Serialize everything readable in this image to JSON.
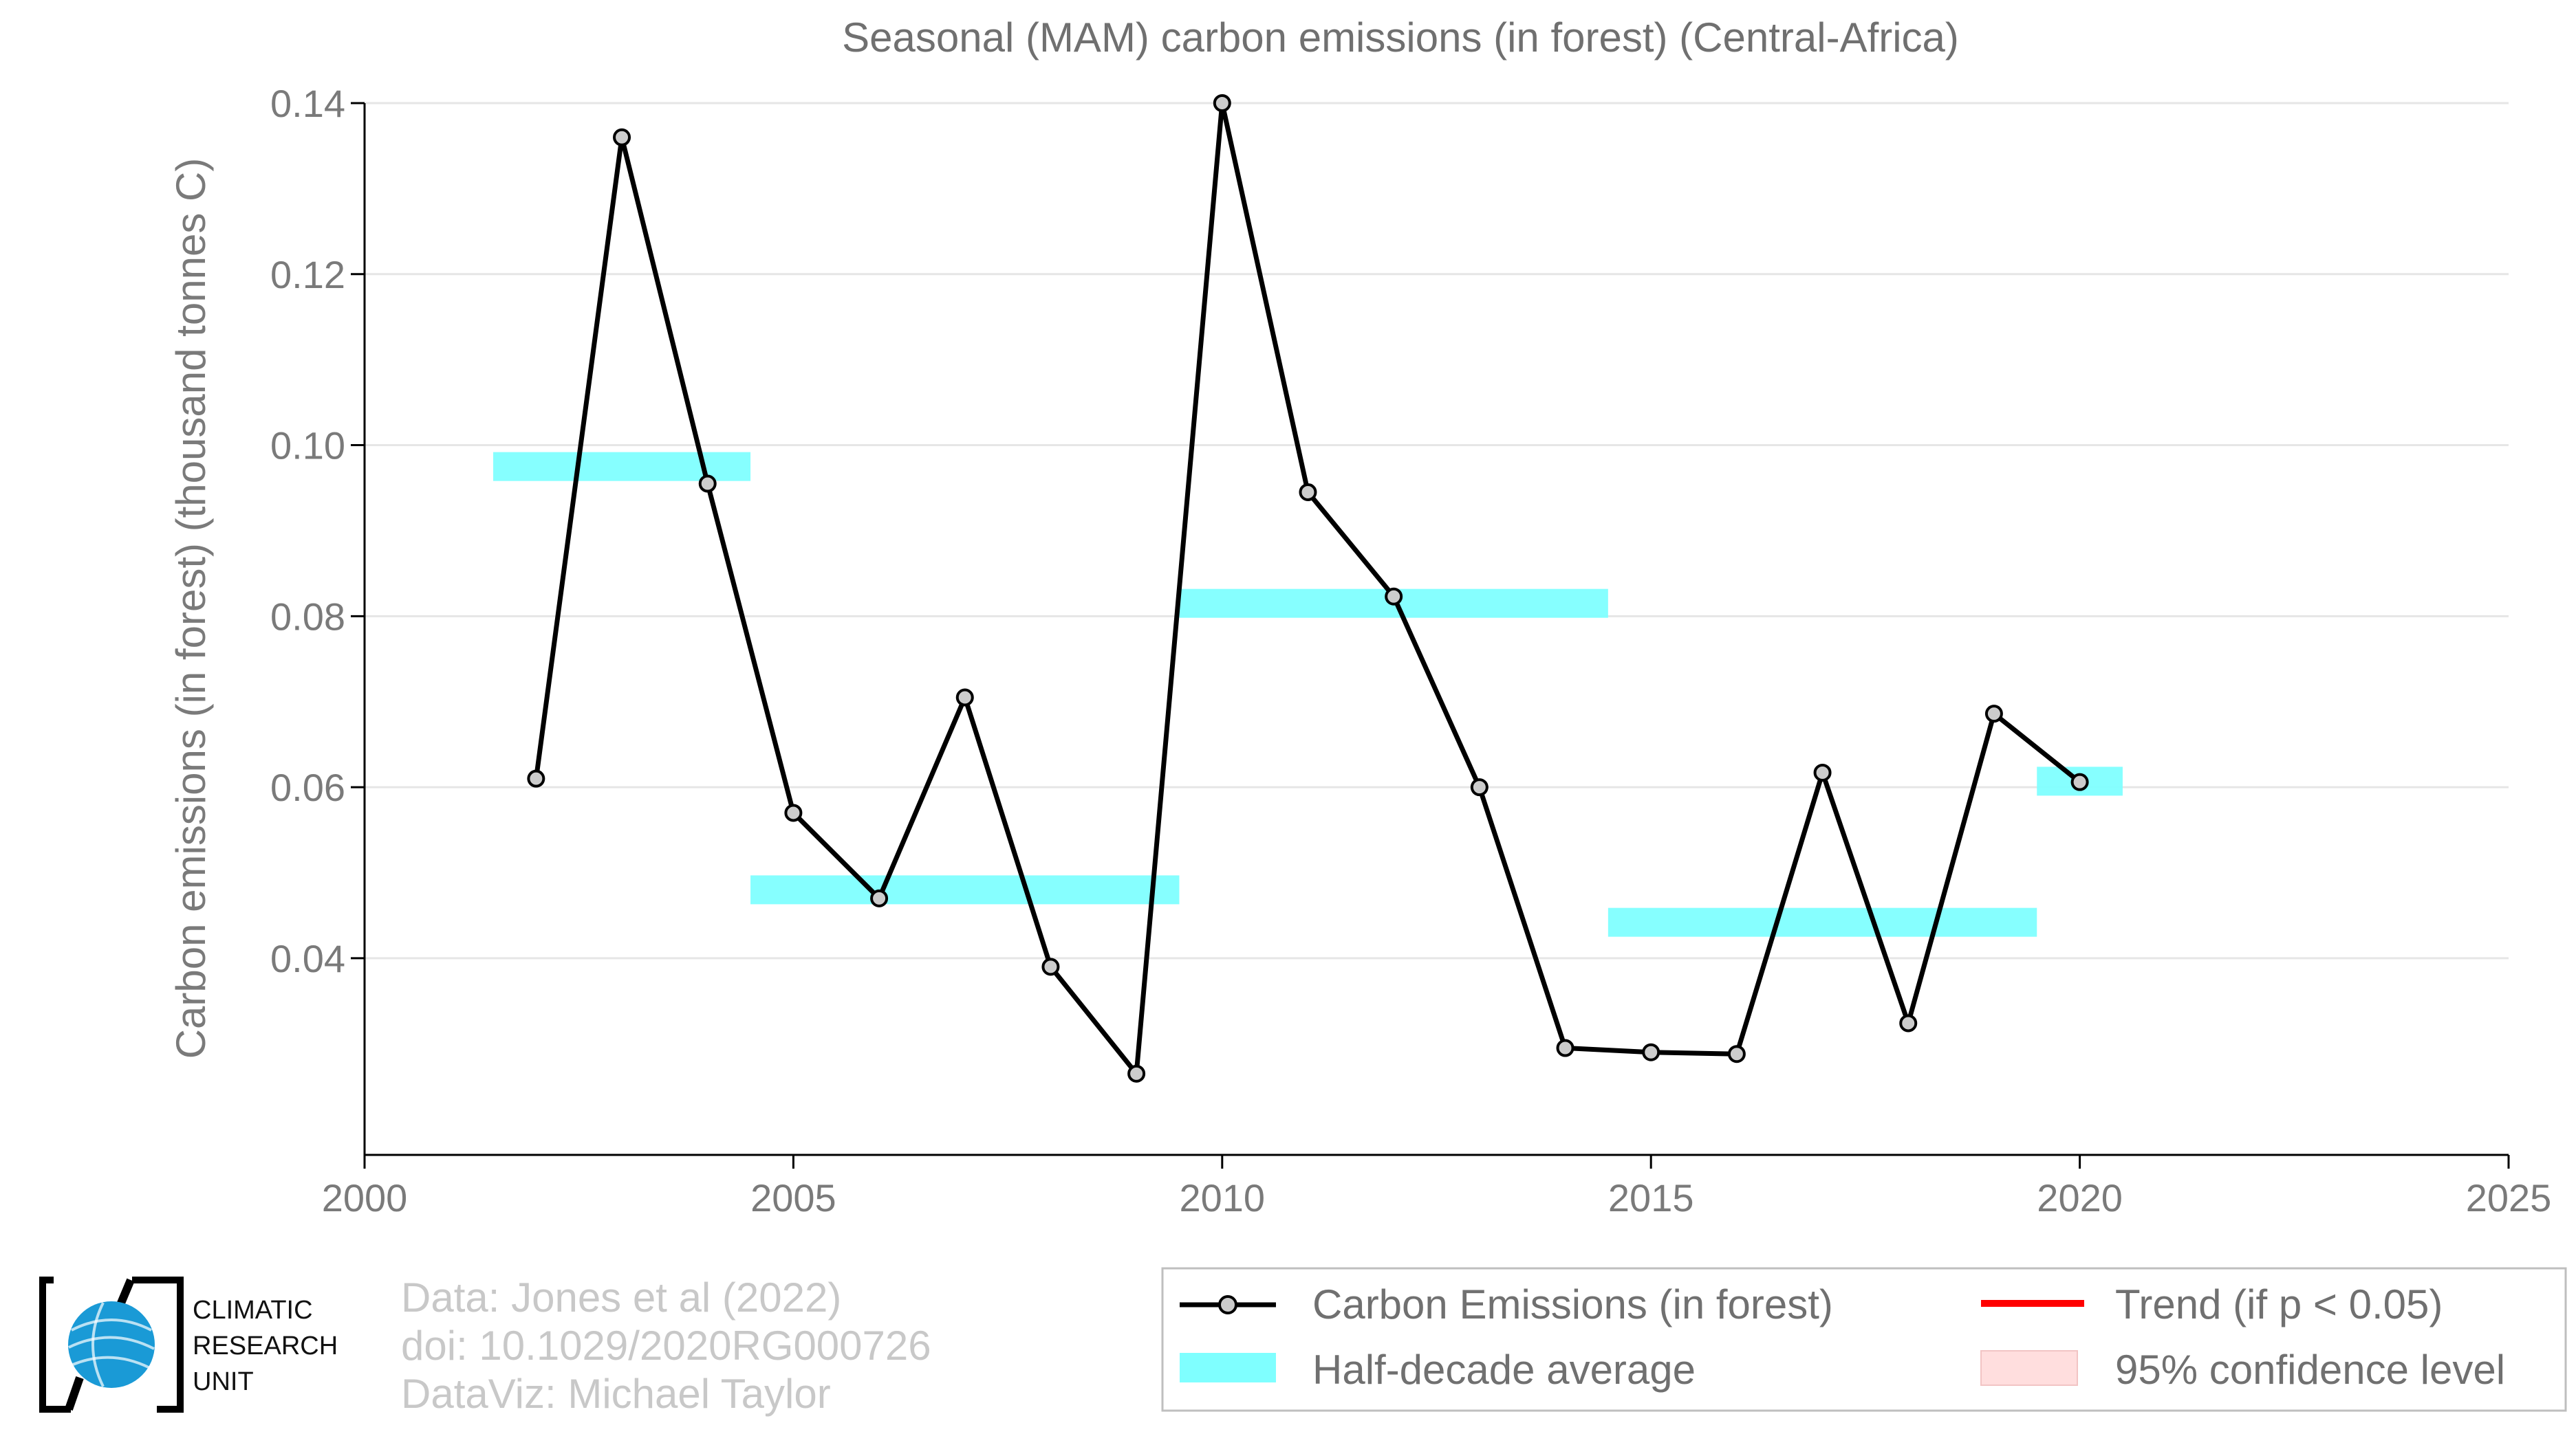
{
  "chart_data": {
    "type": "line",
    "title": "Seasonal (MAM) carbon emissions (in forest) (Central-Africa)",
    "xlabel": "",
    "ylabel": "Carbon emissions (in forest) (thousand tonnes C)",
    "xlim": [
      2000,
      2025
    ],
    "ylim": [
      0.017,
      0.14
    ],
    "x_ticks": [
      2000,
      2005,
      2010,
      2015,
      2020,
      2025
    ],
    "y_ticks": [
      0.04,
      0.06,
      0.08,
      0.1,
      0.12,
      0.14
    ],
    "y_tick_labels": [
      "0.04",
      "0.06",
      "0.08",
      "0.10",
      "0.12",
      "0.14"
    ],
    "grid": "horizontal",
    "series": [
      {
        "name": "Carbon Emissions (in forest)",
        "color": "#000000",
        "marker_fill": "#cccccc",
        "x": [
          2002,
          2003,
          2004,
          2005,
          2006,
          2007,
          2008,
          2009,
          2010,
          2011,
          2012,
          2013,
          2014,
          2015,
          2016,
          2017,
          2018,
          2019,
          2020
        ],
        "y": [
          0.061,
          0.136,
          0.0955,
          0.057,
          0.047,
          0.0705,
          0.039,
          0.0265,
          0.14,
          0.0945,
          0.0823,
          0.06,
          0.0295,
          0.029,
          0.0288,
          0.0617,
          0.0324,
          0.0686,
          0.0606
        ]
      }
    ],
    "half_decade_average": {
      "name": "Half-decade average",
      "color": "#7fffff",
      "segments": [
        {
          "x0": 2001.5,
          "x1": 2004.5,
          "y": 0.0975
        },
        {
          "x0": 2004.5,
          "x1": 2009.5,
          "y": 0.048
        },
        {
          "x0": 2009.5,
          "x1": 2014.5,
          "y": 0.0815
        },
        {
          "x0": 2014.5,
          "x1": 2019.5,
          "y": 0.0442
        },
        {
          "x0": 2019.5,
          "x1": 2020.5,
          "y": 0.0607
        }
      ]
    },
    "legend": {
      "placement": "bottom-right",
      "entries": [
        {
          "label": "Carbon Emissions (in forest)",
          "kind": "line-marker",
          "color": "#000000"
        },
        {
          "label": "Half-decade average",
          "kind": "band",
          "color": "#7fffff"
        },
        {
          "label": "Trend (if p < 0.05)",
          "kind": "line",
          "color": "#ff0000"
        },
        {
          "label": "95% confidence level",
          "kind": "band",
          "color": "#ffdede"
        }
      ]
    }
  },
  "credits": {
    "lines": [
      "Data: Jones et al (2022)",
      "doi: 10.1029/2020RG000726",
      "DataViz: Michael Taylor"
    ]
  },
  "logo": {
    "lines": [
      "CLIMATIC",
      "RESEARCH",
      "UNIT"
    ],
    "globe_color": "#1a9ad6"
  }
}
